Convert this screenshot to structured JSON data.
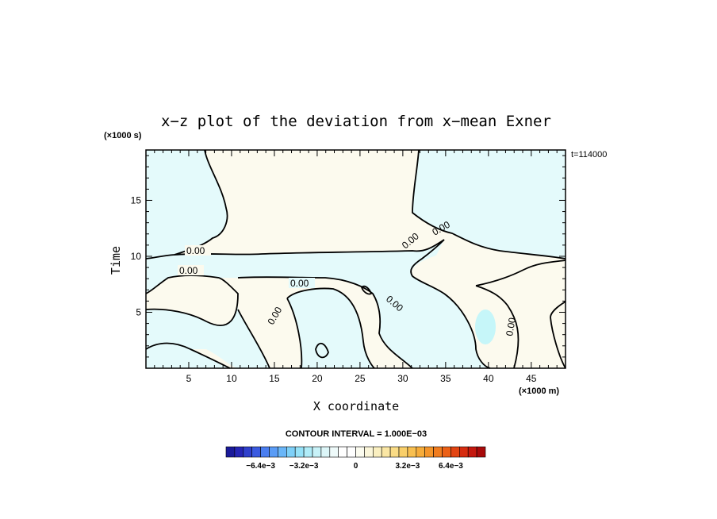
{
  "chart_data": {
    "type": "contour",
    "title": "x−z plot of the deviation from x−mean Exner",
    "xlabel": "X coordinate",
    "ylabel": "Time",
    "x_unit": "(×1000 m)",
    "y_unit": "(×1000 s)",
    "time_label": "t=114000",
    "xlim": [
      0,
      49
    ],
    "ylim": [
      0,
      19.5
    ],
    "x_ticks": [
      5,
      10,
      15,
      20,
      25,
      30,
      35,
      40,
      45
    ],
    "y_ticks": [
      5,
      10,
      15
    ],
    "contour_interval_text": "CONTOUR INTERVAL = 1.000E−03",
    "contour_label": "0.00",
    "colors": {
      "negative_fill": "#e4fafb",
      "positive_fill": "#fcfaee",
      "min_fill": "#c6f6f9",
      "contour_line": "#000000"
    },
    "colorbar": {
      "ticks": [
        "−6.4e−3",
        "−3.2e−3",
        "0",
        "3.2e−3",
        "6.4e−3"
      ],
      "colors": [
        "#1a1a9a",
        "#2525b5",
        "#2f40cc",
        "#3a5ae0",
        "#4a7ef0",
        "#5a9cf6",
        "#6ab6f8",
        "#7ed0f8",
        "#96e2f8",
        "#b0ecf8",
        "#c8f2f8",
        "#dcf6f8",
        "#eefafa",
        "#ffffff",
        "#ffffff",
        "#fcfcf0",
        "#fbf6da",
        "#faefc0",
        "#fae6a4",
        "#fadc86",
        "#f9cf6a",
        "#f8bf50",
        "#f6ac3a",
        "#f4952a",
        "#f07c1e",
        "#eb6016",
        "#e24412",
        "#d62c10",
        "#c4180e",
        "#a80a0a"
      ]
    }
  }
}
